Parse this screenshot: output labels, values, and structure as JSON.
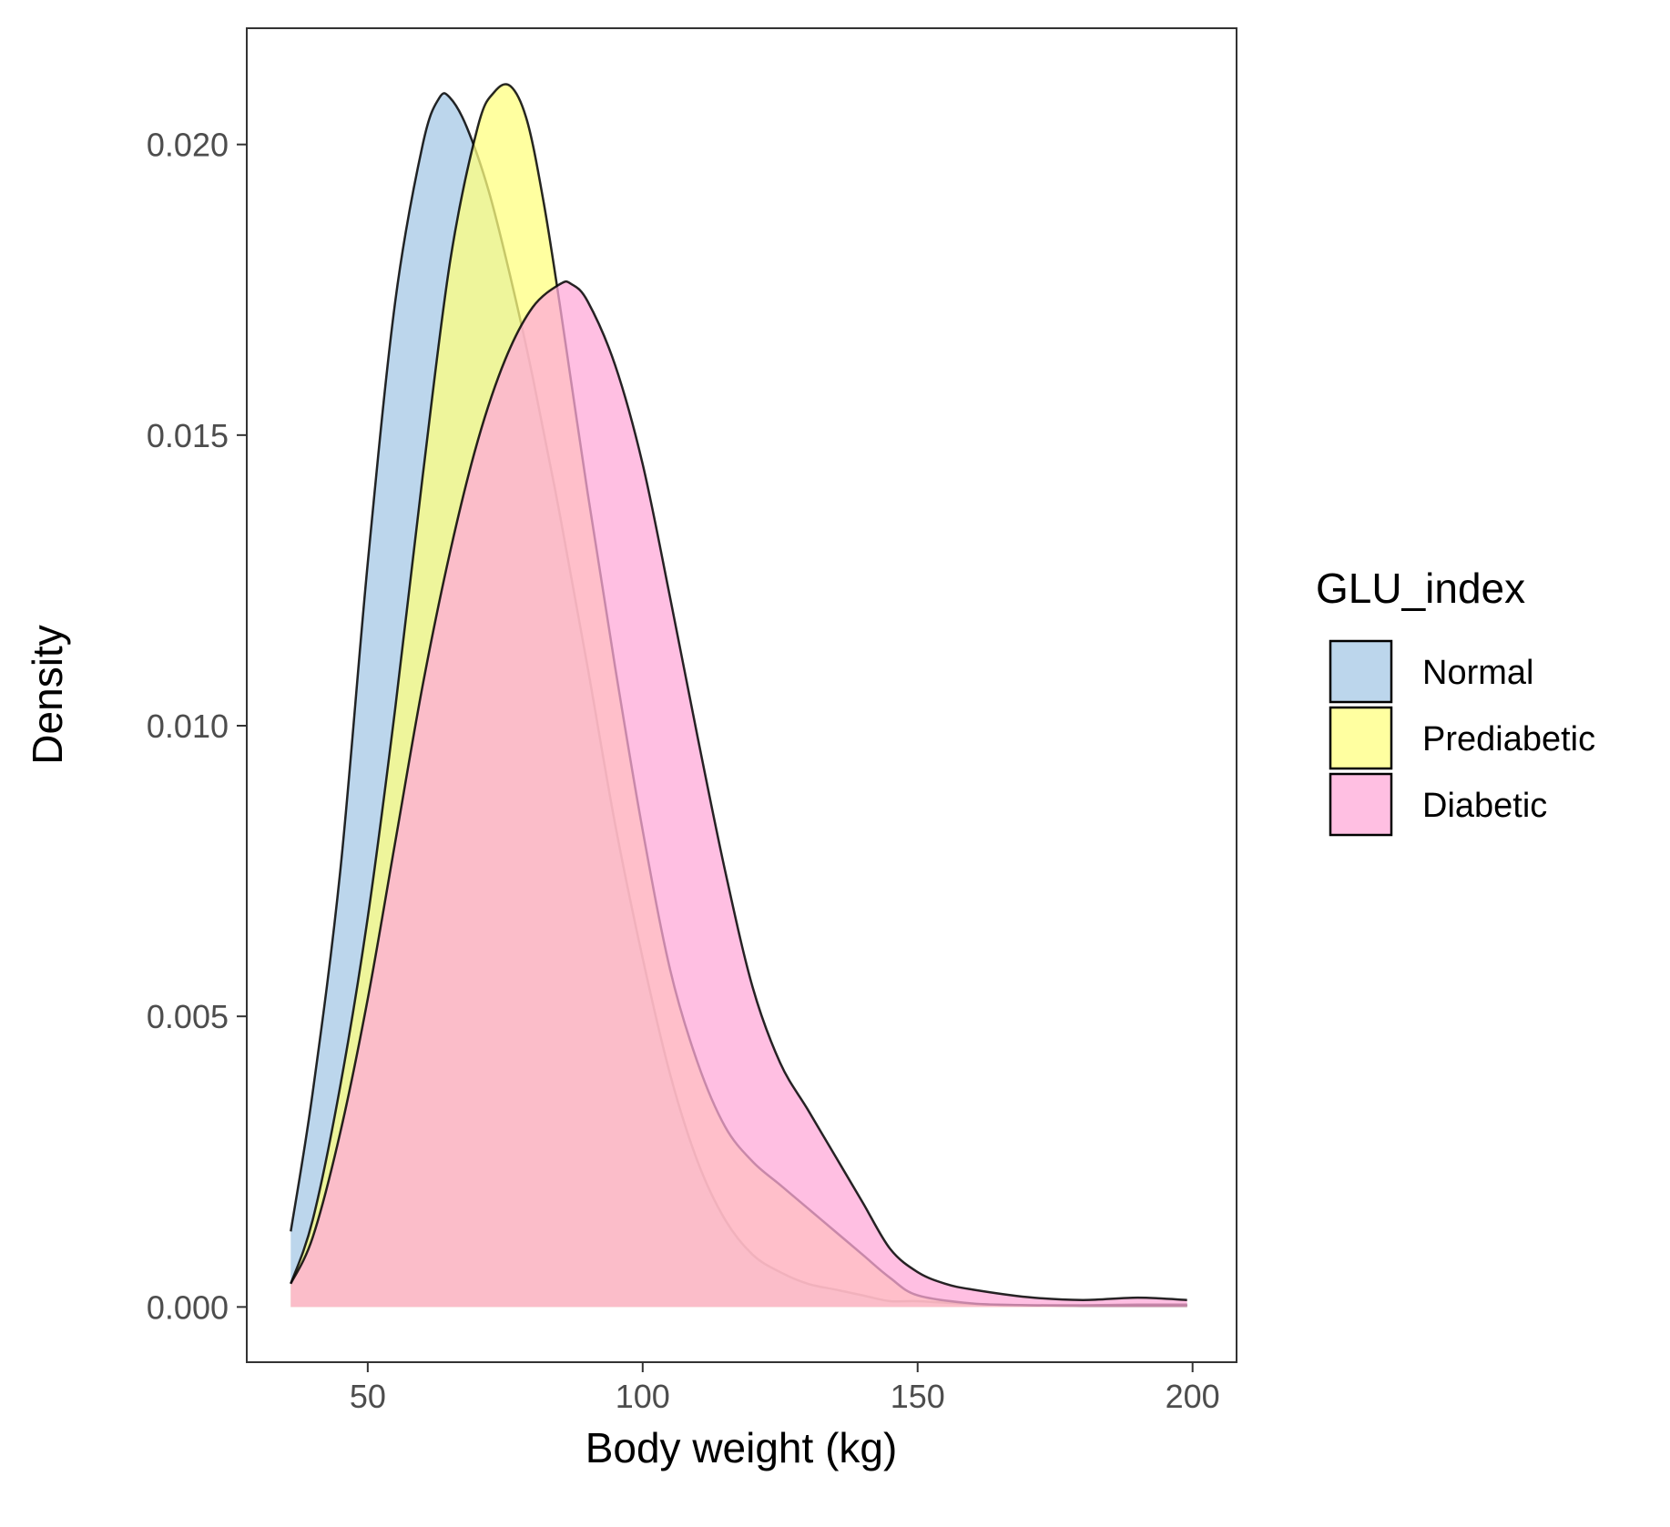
{
  "chart_data": {
    "type": "area",
    "subtype": "density",
    "title": "",
    "xlabel": "Body weight (kg)",
    "ylabel": "Density",
    "xlim": [
      28,
      208
    ],
    "ylim": [
      -0.00095,
      0.022
    ],
    "x_ticks": [
      50,
      100,
      150,
      200
    ],
    "x_tick_labels": [
      "50",
      "100",
      "150",
      "200"
    ],
    "y_ticks": [
      0,
      0.005,
      0.01,
      0.015,
      0.02
    ],
    "y_tick_labels": [
      "0.000",
      "0.005",
      "0.010",
      "0.015",
      "0.020"
    ],
    "grid": false,
    "legend": {
      "title": "GLU_index",
      "position": "right"
    },
    "series": [
      {
        "name": "Normal",
        "color": "#a6c8e6",
        "x": [
          36,
          40,
          45,
          50,
          55,
          60,
          63,
          65,
          68,
          72,
          76,
          80,
          85,
          90,
          95,
          100,
          105,
          110,
          115,
          120,
          125,
          130,
          135,
          140,
          145,
          150,
          160,
          170,
          180,
          190,
          199
        ],
        "y": [
          0.0013,
          0.0037,
          0.0075,
          0.0128,
          0.0173,
          0.02,
          0.0208,
          0.0208,
          0.0203,
          0.0192,
          0.0177,
          0.016,
          0.0136,
          0.011,
          0.0083,
          0.006,
          0.004,
          0.0025,
          0.0015,
          0.0009,
          0.0006,
          0.0004,
          0.0003,
          0.0002,
          0.0001,
          0.0001,
          5e-05,
          3e-05,
          3e-05,
          4e-05,
          4e-05
        ]
      },
      {
        "name": "Prediabetic",
        "color": "#ffff80",
        "x": [
          36,
          40,
          45,
          50,
          55,
          60,
          65,
          70,
          73,
          76,
          79,
          82,
          85,
          90,
          95,
          100,
          105,
          110,
          115,
          120,
          125,
          130,
          135,
          140,
          145,
          150,
          160,
          170,
          180,
          190,
          199
        ],
        "y": [
          0.0004,
          0.0015,
          0.0038,
          0.0067,
          0.0103,
          0.0143,
          0.018,
          0.0203,
          0.0209,
          0.021,
          0.0204,
          0.019,
          0.0172,
          0.014,
          0.011,
          0.0082,
          0.0058,
          0.0042,
          0.0031,
          0.0025,
          0.0021,
          0.0017,
          0.0013,
          0.0009,
          0.0005,
          0.0002,
          6e-05,
          3e-05,
          2e-05,
          2e-05,
          2e-05
        ]
      },
      {
        "name": "Diabetic",
        "color": "#ffaad8",
        "x": [
          36,
          40,
          45,
          50,
          55,
          60,
          65,
          70,
          75,
          80,
          85,
          87,
          90,
          95,
          100,
          105,
          110,
          115,
          120,
          125,
          130,
          135,
          140,
          145,
          150,
          155,
          160,
          170,
          180,
          190,
          199
        ],
        "y": [
          0.0004,
          0.0012,
          0.003,
          0.0053,
          0.008,
          0.0107,
          0.013,
          0.0149,
          0.0163,
          0.0172,
          0.0176,
          0.0176,
          0.0173,
          0.0162,
          0.0145,
          0.0122,
          0.0098,
          0.0075,
          0.0055,
          0.0042,
          0.0034,
          0.0026,
          0.0018,
          0.001,
          0.0006,
          0.0004,
          0.0003,
          0.00017,
          0.00012,
          0.00016,
          0.00012
        ]
      }
    ]
  }
}
